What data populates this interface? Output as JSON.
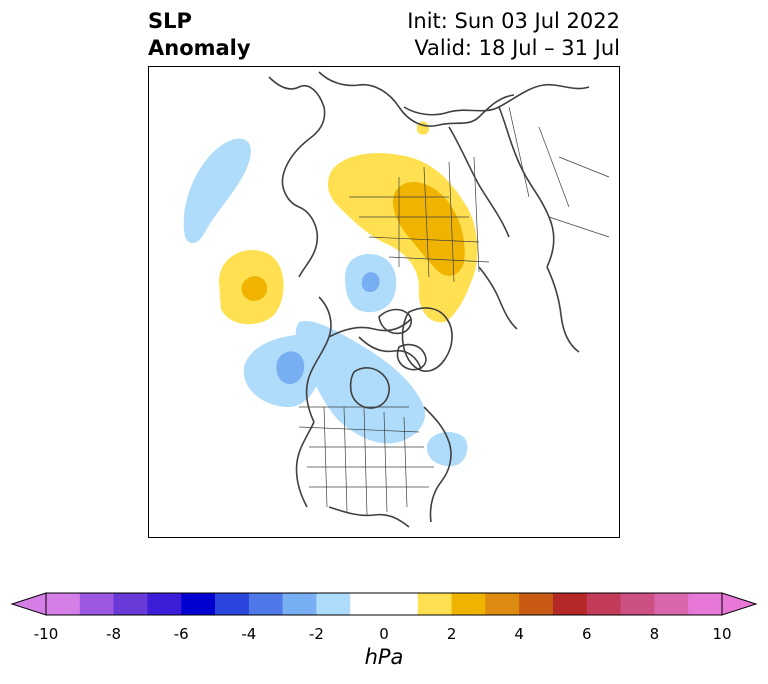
{
  "title": {
    "line1": "SLP",
    "line2": "Anomaly",
    "init": "Init: Sun 03 Jul 2022",
    "valid": "Valid: 18 Jul – 31 Jul"
  },
  "colorbar": {
    "unit": "hPa",
    "ticks": [
      "-10",
      "-8",
      "-6",
      "-4",
      "-2",
      "0",
      "2",
      "4",
      "6",
      "8",
      "10"
    ],
    "range": [
      -10,
      10
    ],
    "step": 1,
    "colors": [
      "#d67ee8",
      "#9c58e0",
      "#6a3ad8",
      "#3c1ed8",
      "#0000d0",
      "#2a44dc",
      "#4f78e8",
      "#78aef2",
      "#aedcfa",
      "#ffffff",
      "#ffffff",
      "#ffe050",
      "#f0b400",
      "#dc8a10",
      "#c85a14",
      "#b42828",
      "#c23c5a",
      "#cc5082",
      "#d866aa",
      "#e878d8"
    ]
  },
  "map": {
    "projection": "north-polar-stereographic",
    "coastline_color": "#404040",
    "anomalies": [
      {
        "name": "siberia-positive",
        "level_hpa": 2
      },
      {
        "name": "siberia-positive-core",
        "level_hpa": 3
      },
      {
        "name": "north-pacific-positive",
        "level_hpa": 2
      },
      {
        "name": "north-pacific-positive-core",
        "level_hpa": 3
      },
      {
        "name": "gulf-of-alaska-negative",
        "level_hpa": -2
      },
      {
        "name": "gulf-of-alaska-negative-core",
        "level_hpa": -3
      },
      {
        "name": "canada-negative",
        "level_hpa": -1
      },
      {
        "name": "arctic-negative",
        "level_hpa": -2
      },
      {
        "name": "arctic-negative-core",
        "level_hpa": -3
      },
      {
        "name": "europe-atlantic-negative",
        "level_hpa": -1
      },
      {
        "name": "newfoundland-negative",
        "level_hpa": -1
      }
    ]
  }
}
